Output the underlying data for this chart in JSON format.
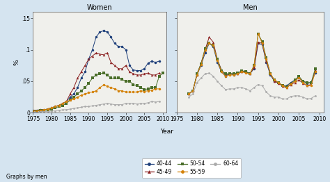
{
  "years": [
    1975,
    1976,
    1977,
    1978,
    1979,
    1980,
    1981,
    1982,
    1983,
    1984,
    1985,
    1986,
    1987,
    1988,
    1989,
    1990,
    1991,
    1992,
    1993,
    1994,
    1995,
    1996,
    1997,
    1998,
    1999,
    2000,
    2001,
    2002,
    2003,
    2004,
    2005,
    2006,
    2007,
    2008,
    2009,
    2010
  ],
  "women": {
    "40-44": [
      0.004,
      0.004,
      0.005,
      0.005,
      0.006,
      0.008,
      0.01,
      0.012,
      0.015,
      0.018,
      0.025,
      0.03,
      0.04,
      0.055,
      0.065,
      0.085,
      0.1,
      0.12,
      0.128,
      0.13,
      0.128,
      0.12,
      0.11,
      0.105,
      0.105,
      0.1,
      0.075,
      0.068,
      0.067,
      0.067,
      0.07,
      0.079,
      0.082,
      0.08,
      0.082,
      null
    ],
    "45-49": [
      0.004,
      0.004,
      0.005,
      0.005,
      0.006,
      0.008,
      0.01,
      0.012,
      0.015,
      0.018,
      0.03,
      0.04,
      0.055,
      0.065,
      0.075,
      0.085,
      0.09,
      0.095,
      0.093,
      0.092,
      0.095,
      0.08,
      0.075,
      0.07,
      0.07,
      0.075,
      0.065,
      0.062,
      0.06,
      0.06,
      0.062,
      0.063,
      0.06,
      0.06,
      0.063,
      null
    ],
    "50-54": [
      0.003,
      0.003,
      0.004,
      0.004,
      0.005,
      0.006,
      0.008,
      0.01,
      0.012,
      0.015,
      0.02,
      0.025,
      0.03,
      0.035,
      0.04,
      0.047,
      0.055,
      0.06,
      0.062,
      0.063,
      0.06,
      0.055,
      0.055,
      0.055,
      0.053,
      0.05,
      0.05,
      0.045,
      0.043,
      0.04,
      0.037,
      0.038,
      0.04,
      0.04,
      0.058,
      0.063
    ],
    "55-59": [
      0.003,
      0.003,
      0.004,
      0.005,
      0.006,
      0.008,
      0.01,
      0.012,
      0.015,
      0.018,
      0.02,
      0.022,
      0.025,
      0.028,
      0.03,
      0.032,
      0.033,
      0.035,
      0.04,
      0.044,
      0.042,
      0.04,
      0.038,
      0.035,
      0.035,
      0.033,
      0.033,
      0.033,
      0.033,
      0.035,
      0.034,
      0.035,
      0.036,
      0.038,
      0.038,
      null
    ],
    "60-64": [
      0.001,
      0.001,
      0.002,
      0.002,
      0.002,
      0.003,
      0.003,
      0.004,
      0.005,
      0.005,
      0.006,
      0.007,
      0.008,
      0.009,
      0.01,
      0.01,
      0.011,
      0.012,
      0.013,
      0.014,
      0.015,
      0.014,
      0.013,
      0.013,
      0.013,
      0.015,
      0.015,
      0.015,
      0.014,
      0.015,
      0.015,
      0.016,
      0.018,
      0.017,
      0.018,
      null
    ]
  },
  "men": {
    "40-44": [
      null,
      null,
      null,
      0.03,
      0.035,
      0.06,
      0.075,
      0.095,
      0.11,
      0.105,
      0.08,
      0.065,
      0.058,
      0.062,
      0.06,
      0.062,
      0.065,
      0.065,
      0.062,
      0.07,
      0.11,
      0.108,
      0.08,
      0.06,
      0.05,
      0.048,
      0.043,
      0.043,
      0.048,
      0.052,
      0.055,
      0.05,
      0.047,
      0.048,
      0.063,
      null
    ],
    "45-49": [
      null,
      null,
      null,
      0.03,
      0.035,
      0.06,
      0.078,
      0.1,
      0.12,
      0.112,
      0.085,
      0.068,
      0.06,
      0.062,
      0.062,
      0.062,
      0.065,
      0.065,
      0.062,
      0.072,
      0.112,
      0.11,
      0.082,
      0.062,
      0.05,
      0.047,
      0.042,
      0.04,
      0.045,
      0.048,
      0.052,
      0.047,
      0.043,
      0.045,
      0.068,
      null
    ],
    "50-54": [
      null,
      null,
      null,
      0.03,
      0.035,
      0.062,
      0.078,
      0.102,
      0.11,
      0.107,
      0.085,
      0.067,
      0.062,
      0.062,
      0.062,
      0.063,
      0.067,
      0.065,
      0.062,
      0.075,
      0.125,
      0.113,
      0.087,
      0.062,
      0.052,
      0.048,
      0.043,
      0.041,
      0.046,
      0.052,
      0.058,
      0.05,
      0.048,
      0.048,
      0.07,
      null
    ],
    "55-59": [
      null,
      null,
      null,
      0.03,
      0.035,
      0.06,
      0.076,
      0.1,
      0.11,
      0.107,
      0.083,
      0.065,
      0.058,
      0.06,
      0.06,
      0.062,
      0.065,
      0.063,
      0.062,
      0.075,
      0.125,
      0.11,
      0.085,
      0.062,
      0.052,
      0.048,
      0.043,
      0.04,
      0.046,
      0.05,
      0.056,
      0.048,
      0.043,
      0.043,
      0.065,
      null
    ],
    "60-64": [
      null,
      null,
      null,
      0.025,
      0.03,
      0.048,
      0.055,
      0.062,
      0.063,
      0.058,
      0.05,
      0.043,
      0.037,
      0.038,
      0.038,
      0.04,
      0.04,
      0.038,
      0.035,
      0.04,
      0.045,
      0.043,
      0.033,
      0.027,
      0.025,
      0.025,
      0.022,
      0.022,
      0.026,
      0.027,
      0.027,
      0.025,
      0.022,
      0.023,
      0.027,
      null
    ]
  },
  "colors": {
    "40-44": "#1e3f7a",
    "45-49": "#8b2020",
    "50-54": "#4a6e2a",
    "55-59": "#d4820a",
    "60-64": "#aaaaaa"
  },
  "ylim": [
    0,
    0.16
  ],
  "yticks": [
    0,
    0.05,
    0.1,
    0.15
  ],
  "ytick_labels": [
    "0",
    ".05",
    ".1",
    ".15"
  ],
  "xticks": [
    1975,
    1980,
    1985,
    1990,
    1995,
    2000,
    2005,
    2010
  ],
  "xlabel": "Year",
  "ylabel": "%",
  "title_women": "Women",
  "title_men": "Men",
  "footer": "Graphs by men",
  "bg_color": "#d5e4f0",
  "panel_bg": "#f0f0ec",
  "legend_entries": [
    "40-44",
    "45-49",
    "50-54",
    "55-59",
    "60-64"
  ],
  "legend_row1": [
    "40-44",
    "45-49",
    "50-54"
  ],
  "legend_row2": [
    "55-59",
    "60-64"
  ]
}
